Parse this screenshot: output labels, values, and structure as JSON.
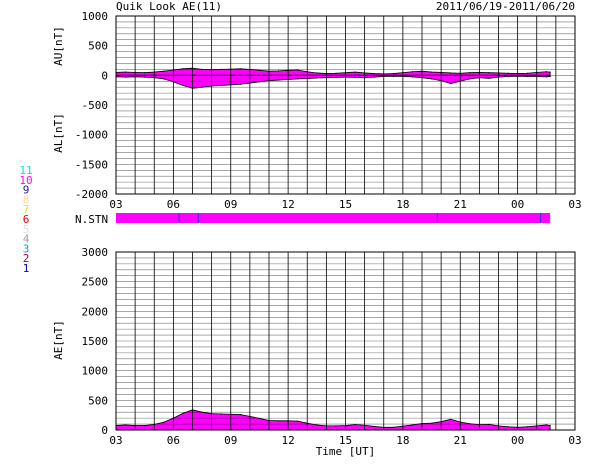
{
  "header": {
    "title": "Quik Look AE(11)",
    "date_range": "2011/06/19-2011/06/20"
  },
  "colors": {
    "fill": "#ff00ff",
    "grid": "#000000",
    "stn_bar": "#ff00ff",
    "stn_marker": "#3333cc"
  },
  "station_legend": [
    {
      "label": "11",
      "color": "#00e0e0"
    },
    {
      "label": "10",
      "color": "#ff00ff"
    },
    {
      "label": "9",
      "color": "#2020a0"
    },
    {
      "label": "8",
      "color": "#ffd8a0"
    },
    {
      "label": "7",
      "color": "#e8e800"
    },
    {
      "label": "6",
      "color": "#e00000"
    },
    {
      "label": "5",
      "color": "#e0e0e0"
    },
    {
      "label": "4",
      "color": "#a0a0a0"
    },
    {
      "label": "3",
      "color": "#20a0a0"
    },
    {
      "label": "2",
      "color": "#a00060"
    },
    {
      "label": "1",
      "color": "#0000c0"
    }
  ],
  "nstn": {
    "label": "N.STN",
    "end_hours": 22.7,
    "marker_hours": [
      3.3,
      4.3,
      16.8,
      22.2
    ]
  },
  "chart_data": [
    {
      "type": "area",
      "title": "",
      "ylabel_top": "AU[nT]",
      "ylabel_bottom": "AL[nT]",
      "xlabel": "",
      "ylim": [
        -2000,
        1000
      ],
      "yticks": [
        1000,
        500,
        0,
        -500,
        -1000,
        -1500,
        -2000
      ],
      "xlim_hours": [
        0,
        24
      ],
      "xtick_labels": [
        "03",
        "06",
        "09",
        "12",
        "15",
        "18",
        "21",
        "00",
        "03"
      ],
      "grid": true,
      "x_hours": [
        0,
        0.5,
        1,
        1.5,
        2,
        2.5,
        3,
        3.5,
        4,
        4.5,
        5,
        5.5,
        6,
        6.5,
        7,
        7.5,
        8,
        8.5,
        9,
        9.5,
        10,
        10.5,
        11,
        11.5,
        12,
        12.5,
        13,
        13.5,
        14,
        14.5,
        15,
        15.5,
        16,
        16.5,
        17,
        17.5,
        18,
        18.5,
        19,
        19.5,
        20,
        20.5,
        21,
        21.5,
        22,
        22.5,
        22.7
      ],
      "series": [
        {
          "name": "AU",
          "values": [
            50,
            55,
            50,
            45,
            55,
            70,
            90,
            110,
            120,
            100,
            95,
            100,
            105,
            110,
            100,
            85,
            70,
            75,
            85,
            90,
            60,
            40,
            30,
            35,
            45,
            55,
            40,
            30,
            25,
            30,
            45,
            60,
            70,
            55,
            50,
            40,
            35,
            45,
            50,
            45,
            40,
            35,
            30,
            35,
            50,
            60,
            55
          ]
        },
        {
          "name": "AL",
          "values": [
            -25,
            -30,
            -25,
            -30,
            -40,
            -60,
            -110,
            -170,
            -220,
            -200,
            -180,
            -170,
            -160,
            -150,
            -130,
            -110,
            -90,
            -80,
            -70,
            -60,
            -55,
            -45,
            -40,
            -35,
            -30,
            -35,
            -40,
            -30,
            -20,
            -15,
            -20,
            -25,
            -40,
            -60,
            -90,
            -140,
            -100,
            -60,
            -40,
            -50,
            -30,
            -20,
            -15,
            -20,
            -20,
            -25,
            -20
          ]
        }
      ]
    },
    {
      "type": "area",
      "title": "",
      "ylabel": "AE[nT]",
      "xlabel": "Time [UT]",
      "ylim": [
        0,
        3000
      ],
      "yticks": [
        3000,
        2500,
        2000,
        1500,
        1000,
        500,
        0
      ],
      "xlim_hours": [
        0,
        24
      ],
      "xtick_labels": [
        "03",
        "06",
        "09",
        "12",
        "15",
        "18",
        "21",
        "00",
        "03"
      ],
      "grid": true,
      "x_hours": [
        0,
        0.5,
        1,
        1.5,
        2,
        2.5,
        3,
        3.5,
        4,
        4.5,
        5,
        5.5,
        6,
        6.5,
        7,
        7.5,
        8,
        8.5,
        9,
        9.5,
        10,
        10.5,
        11,
        11.5,
        12,
        12.5,
        13,
        13.5,
        14,
        14.5,
        15,
        15.5,
        16,
        16.5,
        17,
        17.5,
        18,
        18.5,
        19,
        19.5,
        20,
        20.5,
        21,
        21.5,
        22,
        22.5,
        22.7
      ],
      "series": [
        {
          "name": "AE",
          "values": [
            75,
            85,
            75,
            75,
            95,
            130,
            200,
            280,
            340,
            300,
            275,
            270,
            265,
            260,
            230,
            195,
            160,
            155,
            155,
            150,
            115,
            85,
            70,
            70,
            75,
            90,
            80,
            60,
            45,
            45,
            65,
            85,
            110,
            115,
            140,
            180,
            135,
            105,
            90,
            95,
            70,
            55,
            45,
            55,
            70,
            85,
            75
          ]
        }
      ]
    }
  ]
}
